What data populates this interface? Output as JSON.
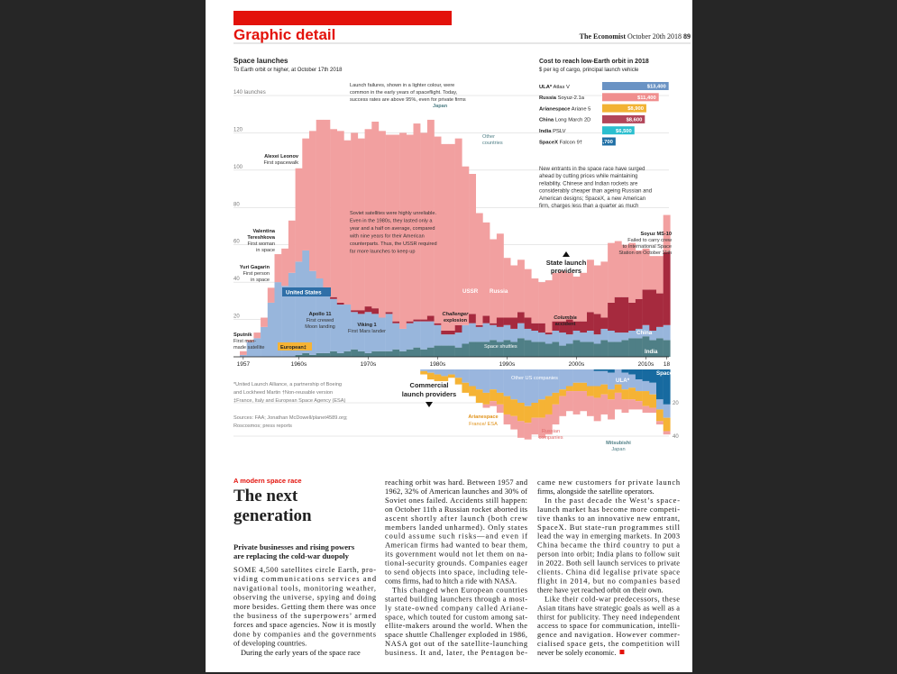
{
  "header": {
    "section": "Graphic detail",
    "publication": "The Economist",
    "date": "October 20th 2018",
    "page": "89"
  },
  "chart_data": [
    {
      "type": "stacked-bar",
      "title": "Space launches",
      "subtitle": "To Earth orbit or higher, at October 17th 2018",
      "x": [
        1957,
        1958,
        1959,
        1960,
        1961,
        1962,
        1963,
        1964,
        1965,
        1966,
        1967,
        1968,
        1969,
        1970,
        1971,
        1972,
        1973,
        1974,
        1975,
        1976,
        1977,
        1978,
        1979,
        1980,
        1981,
        1982,
        1983,
        1984,
        1985,
        1986,
        1987,
        1988,
        1989,
        1990,
        1991,
        1992,
        1993,
        1994,
        1995,
        1996,
        1997,
        1998,
        1999,
        2000,
        2001,
        2002,
        2003,
        2004,
        2005,
        2006,
        2007,
        2008,
        2009,
        2010,
        2011,
        2012,
        2013,
        2014,
        2015,
        2016,
        2017,
        2018
      ],
      "xticks": [
        1957,
        {
          "value": 1965,
          "label": "1960s"
        },
        {
          "value": 1975,
          "label": "1970s"
        },
        {
          "value": 1985,
          "label": "1980s"
        },
        {
          "value": 1995,
          "label": "1990s"
        },
        {
          "value": 2005,
          "label": "2000s"
        },
        {
          "value": 2015,
          "label": "2010s"
        },
        {
          "value": 2018,
          "label": "18"
        }
      ],
      "ylim": [
        0,
        140
      ],
      "yticks": [
        20,
        40,
        60,
        80,
        100,
        120,
        {
          "value": 140,
          "label": "140 launches"
        }
      ],
      "grid": true,
      "series": [
        {
          "name": "Other countries",
          "color": "#4f7f86",
          "values": [
            0,
            0,
            0,
            0,
            0,
            0,
            0,
            0,
            1,
            2,
            1,
            2,
            2,
            3,
            2,
            3,
            4,
            3,
            2,
            3,
            3,
            3,
            4,
            3,
            4,
            5,
            4,
            5,
            6,
            6,
            6,
            5,
            7,
            8,
            8,
            8,
            9,
            8,
            9,
            8,
            10,
            9,
            8,
            8,
            7,
            8,
            6,
            7,
            9,
            8,
            8,
            7,
            9,
            8,
            8,
            9,
            10,
            10,
            11,
            9,
            10,
            9
          ]
        },
        {
          "name": "United States",
          "color": "#98b6dc",
          "values": [
            1,
            8,
            10,
            16,
            29,
            40,
            38,
            45,
            50,
            55,
            45,
            40,
            35,
            28,
            26,
            25,
            20,
            20,
            22,
            20,
            18,
            20,
            14,
            12,
            14,
            14,
            15,
            14,
            11,
            6,
            6,
            8,
            10,
            10,
            8,
            10,
            8,
            8,
            8,
            7,
            8,
            6,
            6,
            5,
            5,
            6,
            7,
            5,
            5,
            5,
            6,
            5,
            6,
            6,
            5,
            4,
            4,
            5,
            6,
            5,
            6,
            8
          ]
        },
        {
          "name": "China",
          "color": "#a62a3e",
          "values": [
            0,
            0,
            0,
            0,
            0,
            0,
            0,
            0,
            0,
            0,
            0,
            0,
            0,
            1,
            1,
            0,
            1,
            2,
            3,
            3,
            0,
            1,
            1,
            0,
            1,
            1,
            1,
            3,
            1,
            2,
            2,
            4,
            0,
            5,
            1,
            4,
            1,
            5,
            4,
            6,
            6,
            6,
            4,
            5,
            1,
            5,
            6,
            8,
            5,
            6,
            10,
            11,
            6,
            15,
            19,
            19,
            15,
            16,
            19,
            22,
            18,
            39
          ]
        },
        {
          "name": "USSR",
          "color": "#f2a0a0",
          "values": [
            2,
            1,
            3,
            5,
            8,
            15,
            20,
            28,
            50,
            60,
            75,
            85,
            90,
            90,
            92,
            88,
            95,
            92,
            95,
            100,
            100,
            95,
            100,
            105,
            100,
            105,
            100,
            105,
            100,
            100,
            100,
            100,
            85,
            75,
            60,
            50,
            45,
            45,
            32,
            28,
            28,
            26,
            24,
            22,
            28,
            26,
            27,
            25,
            24,
            26,
            28,
            26,
            30,
            32,
            30,
            28,
            32,
            26,
            22,
            18,
            20,
            20
          ]
        }
      ]
    },
    {
      "type": "stacked-bar",
      "inverted": true,
      "x": [
        1957,
        1958,
        1959,
        1960,
        1961,
        1962,
        1963,
        1964,
        1965,
        1966,
        1967,
        1968,
        1969,
        1970,
        1971,
        1972,
        1973,
        1974,
        1975,
        1976,
        1977,
        1978,
        1979,
        1980,
        1981,
        1982,
        1983,
        1984,
        1985,
        1986,
        1987,
        1988,
        1989,
        1990,
        1991,
        1992,
        1993,
        1994,
        1995,
        1996,
        1997,
        1998,
        1999,
        2000,
        2001,
        2002,
        2003,
        2004,
        2005,
        2006,
        2007,
        2008,
        2009,
        2010,
        2011,
        2012,
        2013,
        2014,
        2015,
        2016,
        2017,
        2018
      ],
      "ylim": [
        0,
        50
      ],
      "yticks": [
        20,
        40
      ],
      "series": [
        {
          "name": "SpaceX",
          "color": "#176aa0",
          "values": [
            0,
            0,
            0,
            0,
            0,
            0,
            0,
            0,
            0,
            0,
            0,
            0,
            0,
            0,
            0,
            0,
            0,
            0,
            0,
            0,
            0,
            0,
            0,
            0,
            0,
            0,
            0,
            0,
            0,
            0,
            0,
            0,
            0,
            0,
            0,
            0,
            0,
            0,
            0,
            0,
            0,
            0,
            0,
            0,
            0,
            0,
            0,
            0,
            0,
            0,
            0,
            1,
            1,
            2,
            0,
            2,
            3,
            6,
            7,
            8,
            18,
            21
          ]
        },
        {
          "name": "Other US companies",
          "color": "#9ab6de",
          "values": [
            0,
            0,
            0,
            0,
            0,
            0,
            0,
            0,
            0,
            0,
            0,
            0,
            0,
            0,
            0,
            0,
            0,
            0,
            0,
            0,
            0,
            0,
            0,
            0,
            0,
            0,
            1,
            2,
            3,
            4,
            3,
            5,
            8,
            10,
            12,
            14,
            12,
            14,
            16,
            18,
            20,
            22,
            20,
            18,
            16,
            14,
            12,
            10,
            8,
            8,
            10,
            9,
            8,
            10,
            9,
            10,
            8,
            7,
            6,
            7,
            6,
            8
          ]
        },
        {
          "name": "Arianespace",
          "color": "#f5b335",
          "values": [
            0,
            0,
            0,
            0,
            0,
            0,
            0,
            0,
            0,
            0,
            0,
            0,
            0,
            0,
            0,
            0,
            0,
            0,
            0,
            0,
            0,
            0,
            0,
            0,
            0,
            0,
            2,
            4,
            4,
            3,
            2,
            4,
            6,
            6,
            8,
            7,
            7,
            7,
            11,
            10,
            11,
            10,
            9,
            11,
            11,
            7,
            4,
            3,
            5,
            5,
            6,
            7,
            6,
            6,
            5,
            6,
            7,
            6,
            9,
            8,
            7,
            8
          ]
        },
        {
          "name": "Russian companies",
          "color": "#f2a0a0",
          "values": [
            0,
            0,
            0,
            0,
            0,
            0,
            0,
            0,
            0,
            0,
            0,
            0,
            0,
            0,
            0,
            0,
            0,
            0,
            0,
            0,
            0,
            0,
            0,
            0,
            0,
            0,
            0,
            0,
            0,
            0,
            0,
            0,
            0,
            0,
            0,
            2,
            3,
            5,
            6,
            8,
            10,
            10,
            10,
            12,
            12,
            12,
            12,
            12,
            14,
            12,
            12,
            14,
            12,
            12,
            10,
            8,
            6,
            5,
            4,
            3,
            2,
            2
          ]
        }
      ]
    },
    {
      "type": "hbar",
      "title": "Cost to reach low-Earth orbit in 2018",
      "subtitle": "$ per kg of cargo, principal launch vehicle",
      "categories": [
        {
          "company": "ULA*",
          "vehicle": "Atlas V"
        },
        {
          "company": "Russia",
          "vehicle": "Soyuz-2.1a"
        },
        {
          "company": "Arianespace",
          "vehicle": "Ariane 5"
        },
        {
          "company": "China",
          "vehicle": "Long March 2D"
        },
        {
          "company": "India",
          "vehicle": "PSLV"
        },
        {
          "company": "SpaceX",
          "vehicle": "Falcon 9†"
        }
      ],
      "values": [
        13400,
        11400,
        8900,
        8600,
        6500,
        2700
      ],
      "value_labels": [
        "$13,400",
        "$11,400",
        "$8,900",
        "$8,600",
        "$6,500",
        "$2,700"
      ],
      "colors": [
        "#6a93c4",
        "#f08e8e",
        "#f2b233",
        "#b2465a",
        "#2bbfcf",
        "#1f6fa5"
      ],
      "note": [
        "New entrants in the space race have surged",
        "ahead by cutting prices while maintaining",
        "reliability. Chinese and Indian rockets are",
        "considerably cheaper than ageing Russian and",
        "American designs; SpaceX, a new American",
        "firm, charges less than a quarter as much"
      ]
    }
  ],
  "annotations": [
    {
      "lines": [
        "Launch failures, shown in a lighter colour, were",
        "common in the early years of spaceflight. Today,",
        "success rates are above 95%, even for private firms"
      ]
    },
    {
      "lines": [
        "Japan"
      ]
    },
    {
      "lines": [
        "Alexei Leonov",
        "First spacewalk"
      ]
    },
    {
      "lines": [
        "Soviet satellites were highly unreliable.",
        "Even in the 1980s, they lasted only a",
        "year and a half on average, compared",
        "with nine years for their American",
        "counterparts. Thus, the USSR required",
        "far more launches to keep up"
      ]
    },
    {
      "lines": [
        "Valentina",
        "Tereshkova",
        "First woman",
        "in space"
      ]
    },
    {
      "lines": [
        "Yuri Gagarin",
        "First person",
        "in space"
      ]
    },
    {
      "lines": [
        "Russia"
      ]
    },
    {
      "lines": [
        "State launch",
        "providers"
      ]
    },
    {
      "lines": [
        "Soyuz MS-10",
        "Failed to carry crew",
        "to International Space",
        "Station on October 11th"
      ]
    },
    {
      "lines": [
        "Apollo 11",
        "First crewed",
        "Moon landing"
      ]
    },
    {
      "lines": [
        "Viking 1",
        "First Mars lander"
      ]
    },
    {
      "lines": [
        "Challenger",
        "explosion"
      ]
    },
    {
      "lines": [
        "Columbia",
        "accident"
      ]
    },
    {
      "lines": [
        "India"
      ]
    },
    {
      "lines": [
        "Space shuttles"
      ]
    },
    {
      "lines": [
        "European‡"
      ]
    },
    {
      "lines": [
        "Sputnik",
        "First man-",
        "made satellite"
      ]
    },
    {
      "lines": [
        "Commercial",
        "launch providers"
      ]
    },
    {
      "lines": [
        "ULA*"
      ]
    },
    {
      "lines": [
        "France/ ESA"
      ]
    },
    {
      "lines": [
        "Mitsubishi",
        "Japan"
      ]
    }
  ],
  "notes": [
    "*United Launch Alliance, a partnership of Boeing",
    "and Lockheed Martin  †Non-reusable version",
    "‡France, Italy and European Space Agency (ESA)"
  ],
  "sources": [
    "Sources: FAA; Jonathan McDowell/planet4589.org;",
    "Roscosmos; press reports"
  ],
  "article": {
    "kicker": "A modern space race",
    "headline": [
      "The next",
      "generation"
    ],
    "standfirst": [
      "Private businesses and rising powers",
      "are replacing the cold-war duopoly"
    ],
    "columns": [
      [
        "SOME 4,500 satellites circle Earth, pro-",
        "viding communications services and",
        "navigational tools, monitoring weather,",
        "observing the universe, spying and doing",
        "more besides. Getting them there was once",
        "the business of the superpowers’ armed",
        "forces and space agencies. Now it is mostly",
        "done by companies and the governments",
        "of developing countries.",
        "During the early years of the space race"
      ],
      [
        "reaching orbit was hard. Between 1957 and",
        "1962, 32% of American launches and 30% of",
        "Soviet ones failed. Accidents still happen:",
        "on October 11th a Russian rocket aborted its",
        "ascent shortly after launch (both crew",
        "members landed unharmed). Only states",
        "could assume such risks—and even if",
        "American firms had wanted to bear them,",
        "its government would not let them on na-",
        "tional-security grounds. Companies eager",
        "to send objects into space, including tele-",
        "coms firms, had to hitch a ride with NASA.",
        "This changed when European countries",
        "started building launchers through a most-",
        "ly state-owned company called Ariane-",
        "space, which touted for custom among sat-",
        "ellite-makers around the world. When the",
        "space shuttle Challenger exploded in 1986,",
        "NASA got out of the satellite-launching",
        "business. It and, later, the Pentagon be-"
      ],
      [
        "came new customers for private launch",
        "firms, alongside the satellite operators.",
        "In the past decade the West’s space-",
        "launch market has become more competi-",
        "tive thanks to an innovative new entrant,",
        "SpaceX. But state-run programmes still",
        "lead the way in emerging markets. In 2003",
        "China became the third country to put a",
        "person into orbit; India plans to follow suit",
        "in 2022. Both sell launch services to private",
        "clients. China did legalise private space",
        "flight in 2014, but no companies based",
        "there have yet reached orbit on their own.",
        "Like their cold-war predecessors, these",
        "Asian titans have strategic goals as well as a",
        "thirst for publicity. They need independent",
        "access to space for communication, intelli-",
        "gence and navigation. However commer-",
        "cialised space gets, the competition will",
        "never be solely economic."
      ]
    ]
  }
}
